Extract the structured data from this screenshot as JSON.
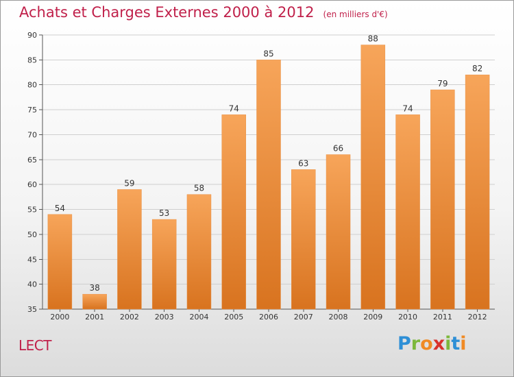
{
  "title": "Achats et Charges Externes 2000 à 2012",
  "unit": "(en milliers d'€)",
  "commune": "LECT",
  "logo": {
    "letters": [
      "P",
      "r",
      "o",
      "x",
      "i",
      "t",
      "i"
    ]
  },
  "colors": {
    "bar_top": "#f7a55a",
    "bar_bottom": "#d8731f",
    "title": "#c0204a"
  },
  "chart_data": {
    "type": "bar",
    "title": "Achats et Charges Externes 2000 à 2012",
    "subtitle": "(en milliers d'€)",
    "categories": [
      "2000",
      "2001",
      "2002",
      "2003",
      "2004",
      "2005",
      "2006",
      "2007",
      "2008",
      "2009",
      "2010",
      "2011",
      "2012"
    ],
    "values": [
      54,
      38,
      59,
      53,
      58,
      74,
      85,
      63,
      66,
      88,
      74,
      79,
      82
    ],
    "value_labels": [
      "54",
      "38",
      "59",
      "53",
      "58",
      "74",
      "85",
      "63",
      "66",
      "88",
      "74",
      "79",
      "82"
    ],
    "ylim": [
      35,
      90
    ],
    "yticks": [
      35,
      40,
      45,
      50,
      55,
      60,
      65,
      70,
      75,
      80,
      85,
      90
    ],
    "ytick_labels": [
      "35",
      "40",
      "45",
      "50",
      "55",
      "60",
      "65",
      "70",
      "75",
      "80",
      "85",
      "90"
    ],
    "grid": true,
    "legend": "none"
  }
}
